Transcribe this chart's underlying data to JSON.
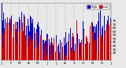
{
  "background_color": "#e8e8e8",
  "bar_color_high": "#0000cc",
  "bar_color_low": "#cc0000",
  "legend_label_high": "High",
  "legend_label_low": "Low",
  "ylim": [
    20,
    100
  ],
  "ytick_labels": [
    "75",
    "70",
    "65",
    "60",
    "55",
    "50",
    "45",
    "40",
    "35",
    "30"
  ],
  "ytick_vals": [
    75,
    70,
    65,
    60,
    55,
    50,
    45,
    40,
    35,
    30
  ],
  "n_days": 365,
  "grid_color": "#aaaaaa",
  "tick_fontsize": 3.0,
  "legend_fontsize": 3.0,
  "bar_width": 0.8,
  "seed": 99
}
